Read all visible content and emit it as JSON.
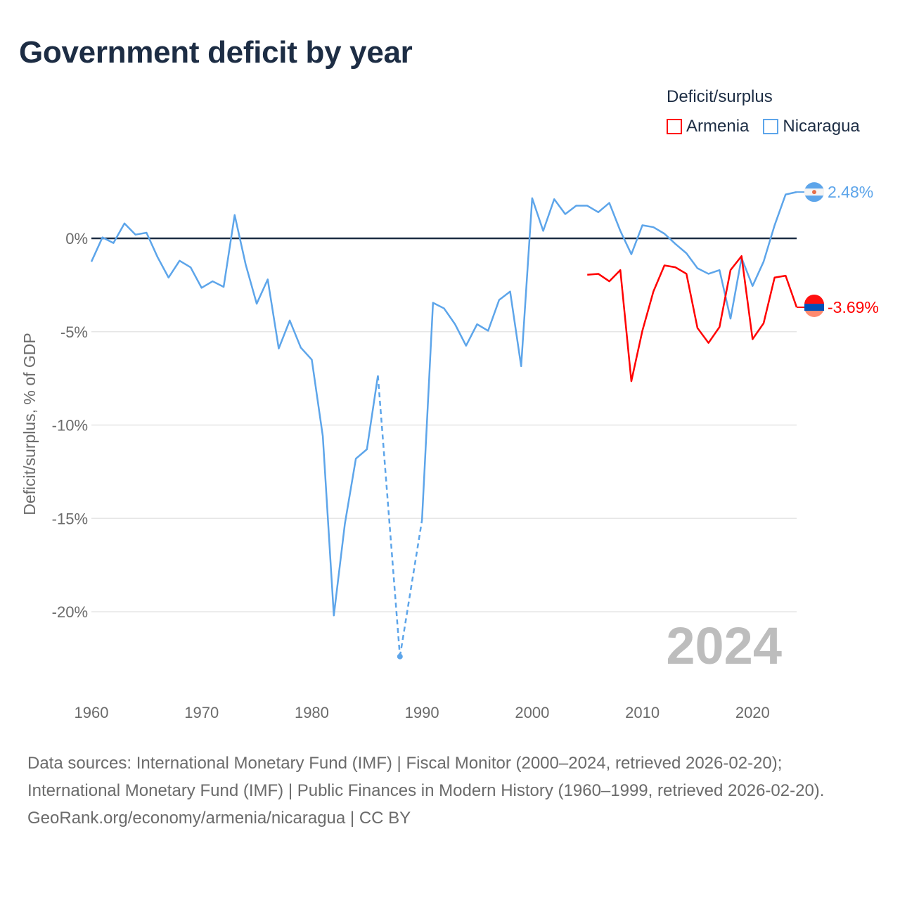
{
  "title": "Government deficit by year",
  "legend": {
    "title": "Deficit/surplus",
    "items": [
      {
        "label": "Armenia",
        "color": "#ff0000"
      },
      {
        "label": "Nicaragua",
        "color": "#5da5ea"
      }
    ]
  },
  "chart_data": {
    "type": "line",
    "title": "Government deficit by year",
    "ylabel": "Deficit/surplus, % of GDP",
    "xlabel": "",
    "xlim": [
      1960,
      2024
    ],
    "ylim": [
      -24,
      3.5
    ],
    "x_ticks": [
      1960,
      1970,
      1980,
      1990,
      2000,
      2010,
      2020
    ],
    "x_tick_labels": [
      "1960",
      "1970",
      "1980",
      "1990",
      "2000",
      "2010",
      "2020"
    ],
    "y_ticks": [
      0,
      -5,
      -10,
      -15,
      -20
    ],
    "y_tick_labels": [
      "0%",
      "-5%",
      "-10%",
      "-15%",
      "-20%"
    ],
    "year_watermark": "2024",
    "series": [
      {
        "name": "Nicaragua",
        "color": "#5da5ea",
        "start_year": 1960,
        "end_label": "2.48%",
        "values": [
          -1.25,
          0.05,
          -0.25,
          0.8,
          0.2,
          0.3,
          -1.0,
          -2.1,
          -1.2,
          -1.55,
          -2.65,
          -2.3,
          -2.6,
          1.25,
          -1.4,
          -3.5,
          -2.2,
          -5.9,
          -4.4,
          -5.85,
          -6.5,
          -10.6,
          -20.2,
          -15.3,
          -11.8,
          -11.3,
          -7.35,
          null,
          -22.4,
          null,
          -15.1,
          -3.45,
          -3.75,
          -4.6,
          -5.75,
          -4.6,
          -4.95,
          -3.3,
          -2.85,
          -6.85,
          2.15,
          0.4,
          2.1,
          1.3,
          1.75,
          1.75,
          1.4,
          1.9,
          0.4,
          -0.85,
          0.7,
          0.6,
          0.25,
          -0.3,
          -0.8,
          -1.6,
          -1.9,
          -1.7,
          -4.3,
          -1.05,
          -2.55,
          -1.25,
          0.7,
          2.35,
          2.48
        ]
      },
      {
        "name": "Armenia",
        "color": "#ff0000",
        "start_year": 2005,
        "end_label": "-3.69%",
        "values": [
          -1.95,
          -1.9,
          -2.3,
          -1.7,
          -7.65,
          -4.95,
          -2.85,
          -1.45,
          -1.55,
          -1.9,
          -4.8,
          -5.6,
          -4.75,
          -1.7,
          -0.95,
          -5.4,
          -4.55,
          -2.1,
          -2.0,
          -3.69
        ]
      }
    ]
  },
  "footer": {
    "sources": "Data sources: International Monetary Fund (IMF) | Fiscal Monitor (2000–2024, retrieved 2026-02-20); International Monetary Fund (IMF) | Public Finances in Modern History (1960–1999, retrieved 2026-02-20).",
    "credit": "GeoRank.org/economy/armenia/nicaragua | CC BY"
  }
}
